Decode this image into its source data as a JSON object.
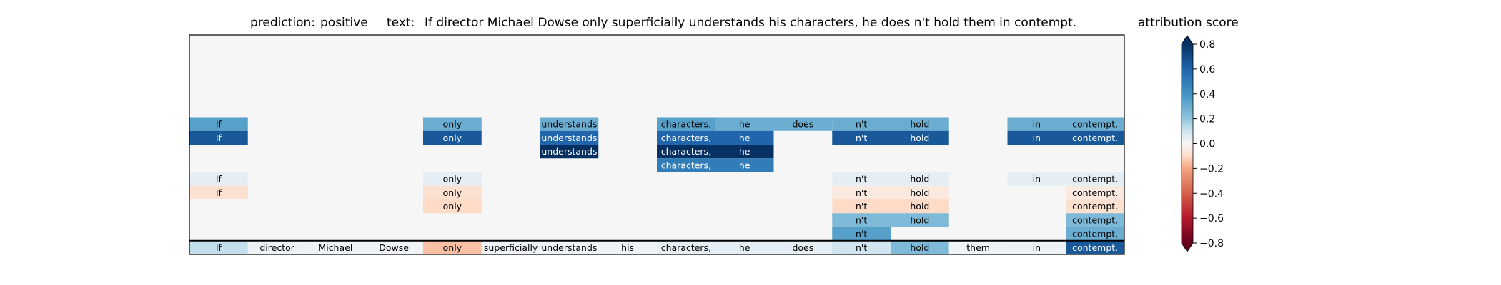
{
  "header": {
    "prediction_label": "prediction:",
    "prediction_value": "positive",
    "text_label": "text:",
    "text_value": "If director Michael Dowse only superficially understands his characters, he does n't hold them in contempt."
  },
  "chart_data": {
    "type": "heatmap",
    "title": "prediction: positive text: If director Michael Dowse only superficially understands his characters, he does n't hold them in contempt.",
    "tokens": [
      "If",
      "director",
      "Michael",
      "Dowse",
      "only",
      "superficially",
      "understands",
      "his",
      "characters,",
      "he",
      "does",
      "n't",
      "hold",
      "them",
      "in",
      "contempt."
    ],
    "n_rows": 16,
    "rows": [
      {
        "values": [
          null,
          null,
          null,
          null,
          null,
          null,
          null,
          null,
          null,
          null,
          null,
          null,
          null,
          null,
          null,
          null
        ]
      },
      {
        "values": [
          null,
          null,
          null,
          null,
          null,
          null,
          null,
          null,
          null,
          null,
          null,
          null,
          null,
          null,
          null,
          null
        ]
      },
      {
        "values": [
          null,
          null,
          null,
          null,
          null,
          null,
          null,
          null,
          null,
          null,
          null,
          null,
          null,
          null,
          null,
          null
        ]
      },
      {
        "values": [
          null,
          null,
          null,
          null,
          null,
          null,
          null,
          null,
          null,
          null,
          null,
          null,
          null,
          null,
          null,
          null
        ]
      },
      {
        "values": [
          null,
          null,
          null,
          null,
          null,
          null,
          null,
          null,
          null,
          null,
          null,
          null,
          null,
          null,
          null,
          null
        ]
      },
      {
        "values": [
          null,
          null,
          null,
          null,
          null,
          null,
          null,
          null,
          null,
          null,
          null,
          null,
          null,
          null,
          null,
          null
        ]
      },
      {
        "values": [
          0.35,
          null,
          null,
          null,
          0.3,
          null,
          0.3,
          null,
          0.35,
          0.3,
          0.3,
          0.3,
          0.3,
          null,
          0.3,
          0.3
        ]
      },
      {
        "values": [
          0.65,
          null,
          null,
          null,
          0.65,
          null,
          0.6,
          null,
          0.6,
          0.6,
          null,
          0.65,
          0.65,
          null,
          0.65,
          0.65
        ]
      },
      {
        "values": [
          null,
          null,
          null,
          null,
          null,
          null,
          0.8,
          null,
          0.8,
          0.8,
          null,
          null,
          null,
          null,
          null,
          null
        ]
      },
      {
        "values": [
          null,
          null,
          null,
          null,
          null,
          null,
          null,
          null,
          0.5,
          0.5,
          null,
          null,
          null,
          null,
          null,
          null
        ]
      },
      {
        "values": [
          0.05,
          null,
          null,
          null,
          0.05,
          null,
          null,
          null,
          null,
          null,
          null,
          0.05,
          0.05,
          null,
          0.05,
          0.05
        ]
      },
      {
        "values": [
          -0.08,
          null,
          null,
          null,
          -0.08,
          null,
          null,
          null,
          null,
          null,
          null,
          -0.05,
          -0.05,
          null,
          null,
          -0.05
        ]
      },
      {
        "values": [
          null,
          null,
          null,
          null,
          -0.1,
          null,
          null,
          null,
          null,
          null,
          null,
          -0.1,
          -0.1,
          null,
          null,
          -0.08
        ]
      },
      {
        "values": [
          null,
          null,
          null,
          null,
          null,
          null,
          null,
          null,
          null,
          null,
          null,
          0.25,
          0.25,
          null,
          null,
          0.25
        ]
      },
      {
        "values": [
          null,
          null,
          null,
          null,
          null,
          null,
          null,
          null,
          null,
          null,
          null,
          0.35,
          null,
          null,
          null,
          0.3
        ]
      },
      {
        "values": [
          0.12,
          0.03,
          0.02,
          0.02,
          -0.15,
          0.02,
          0.02,
          0.02,
          0.05,
          0.05,
          0.05,
          0.1,
          0.25,
          0.02,
          0.03,
          0.65
        ]
      }
    ],
    "colorbar": {
      "label": "attribution score",
      "vmin": -0.8,
      "vmax": 0.8,
      "ticks": [
        "0.8",
        "0.6",
        "0.4",
        "0.2",
        "0.0",
        "−0.2",
        "−0.4",
        "−0.6",
        "−0.8"
      ],
      "tick_values": [
        0.8,
        0.6,
        0.4,
        0.2,
        0.0,
        -0.2,
        -0.4,
        -0.6,
        -0.8
      ],
      "colormap": "RdBu"
    },
    "colors": {
      "background": "#f5f6f5",
      "separator": "#000000"
    }
  }
}
